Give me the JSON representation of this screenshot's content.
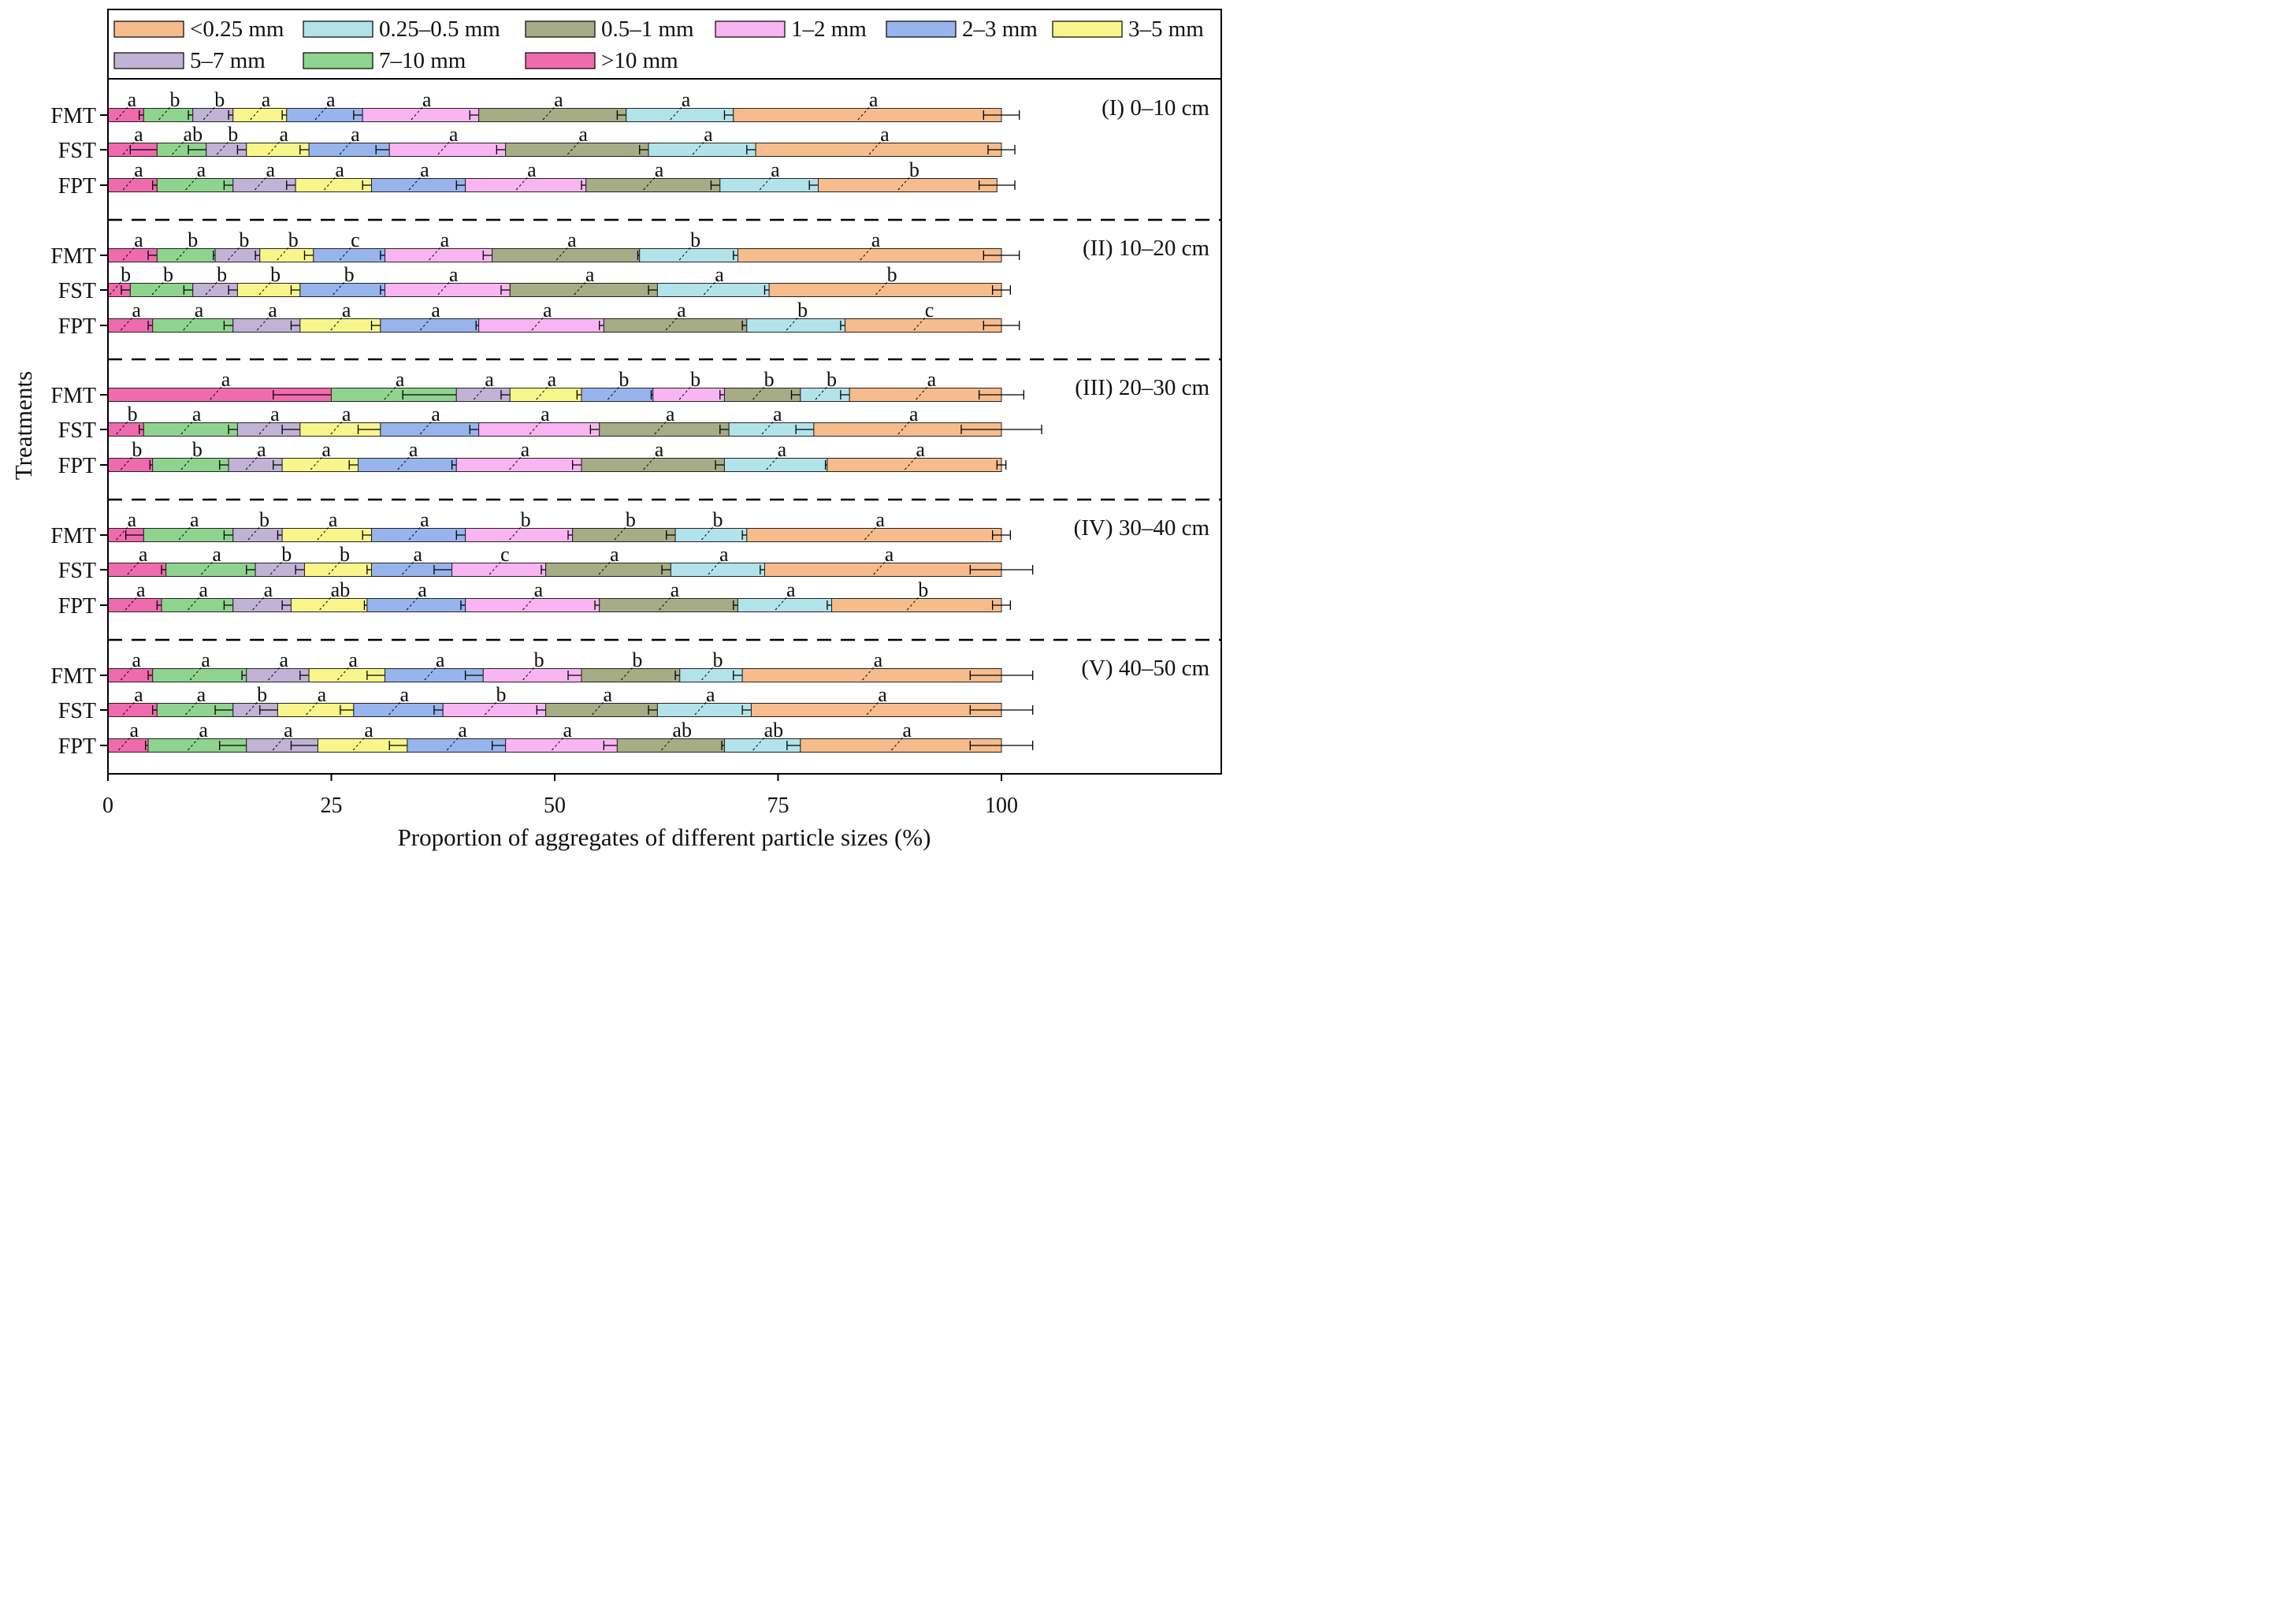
{
  "chart_data": {
    "type": "bar",
    "orientation": "horizontal",
    "stacked": true,
    "xlabel": "Proportion of aggregates of different particle sizes (%)",
    "ylabel": "Treatments",
    "xlim": [
      0,
      125
    ],
    "xticks": [
      0,
      25,
      50,
      75,
      100
    ],
    "legend_position": "top",
    "grid": false,
    "classes": [
      ">10 mm",
      "7–10 mm",
      "5–7 mm",
      "3–5 mm",
      "2–3 mm",
      "1–2 mm",
      "0.5–1 mm",
      "0.25–0.5 mm",
      "<0.25 mm"
    ],
    "legend_order": [
      "<0.25 mm",
      "0.25–0.5 mm",
      "0.5–1 mm",
      "1–2 mm",
      "2–3 mm",
      "3–5 mm",
      "5–7 mm",
      "7–10 mm",
      ">10 mm"
    ],
    "colors": {
      ">10 mm": "#F06AAE",
      "7–10 mm": "#8FD48E",
      "5–7 mm": "#C0B3D6",
      "3–5 mm": "#F8F68A",
      "2–3 mm": "#98B4EC",
      "1–2 mm": "#F8B5F2",
      "0.5–1 mm": "#A6AC85",
      "0.25–0.5 mm": "#B3E3EA",
      "<0.25 mm": "#F6BC8C"
    },
    "panels": [
      {
        "label": "(I) 0–10 cm",
        "rows": [
          {
            "treatment": "FMT",
            "values": [
              4.0,
              5.5,
              4.5,
              6.0,
              8.5,
              13.0,
              16.5,
              12.0,
              30.0
            ],
            "errors": [
              0.5,
              0.5,
              0.5,
              0.5,
              1.0,
              1.0,
              1.0,
              1.0,
              2.0
            ],
            "letters": [
              "a",
              "b",
              "b",
              "a",
              "a",
              "a",
              "a",
              "a",
              "a"
            ]
          },
          {
            "treatment": "FST",
            "values": [
              5.5,
              5.5,
              4.5,
              7.0,
              9.0,
              13.0,
              16.0,
              12.0,
              27.5
            ],
            "errors": [
              3.0,
              2.0,
              1.0,
              1.0,
              1.5,
              1.0,
              1.0,
              1.0,
              1.5
            ],
            "letters": [
              "a",
              "ab",
              "b",
              "a",
              "a",
              "a",
              "a",
              "a",
              "a"
            ]
          },
          {
            "treatment": "FPT",
            "values": [
              5.5,
              8.5,
              7.0,
              8.5,
              10.5,
              13.5,
              15.0,
              11.0,
              20.0
            ],
            "errors": [
              0.5,
              1.0,
              1.0,
              1.0,
              1.0,
              0.5,
              1.0,
              1.0,
              2.0
            ],
            "letters": [
              "a",
              "a",
              "a",
              "a",
              "a",
              "a",
              "a",
              "a",
              "b"
            ]
          }
        ]
      },
      {
        "label": "(II) 10–20 cm",
        "rows": [
          {
            "treatment": "FMT",
            "values": [
              5.5,
              6.5,
              5.0,
              6.0,
              8.0,
              12.0,
              16.5,
              11.0,
              29.5
            ],
            "errors": [
              1.0,
              0.2,
              0.5,
              1.0,
              0.5,
              1.0,
              0.2,
              0.5,
              2.0
            ],
            "letters": [
              "a",
              "b",
              "b",
              "b",
              "c",
              "a",
              "a",
              "b",
              "a"
            ]
          },
          {
            "treatment": "FST",
            "values": [
              2.5,
              7.0,
              5.0,
              7.0,
              9.5,
              14.0,
              16.5,
              12.5,
              26.0
            ],
            "errors": [
              1.0,
              1.0,
              1.0,
              1.0,
              0.5,
              1.0,
              1.0,
              0.5,
              1.0
            ],
            "letters": [
              "b",
              "b",
              "b",
              "b",
              "b",
              "a",
              "a",
              "a",
              "b"
            ]
          },
          {
            "treatment": "FPT",
            "values": [
              5.0,
              9.0,
              7.5,
              9.0,
              11.0,
              14.0,
              16.0,
              11.0,
              17.5
            ],
            "errors": [
              0.5,
              1.0,
              1.0,
              1.0,
              0.3,
              0.5,
              0.5,
              0.5,
              2.0
            ],
            "letters": [
              "a",
              "a",
              "a",
              "a",
              "a",
              "a",
              "a",
              "b",
              "c"
            ]
          }
        ]
      },
      {
        "label": "(III) 20–30 cm",
        "rows": [
          {
            "treatment": "FMT",
            "values": [
              25.0,
              14.0,
              6.0,
              8.0,
              8.0,
              8.0,
              8.5,
              5.5,
              17.0
            ],
            "errors": [
              6.5,
              6.0,
              1.0,
              0.5,
              0.2,
              0.5,
              1.0,
              1.0,
              2.5
            ],
            "letters": [
              "a",
              "a",
              "a",
              "a",
              "b",
              "b",
              "b",
              "b",
              "a"
            ]
          },
          {
            "treatment": "FST",
            "values": [
              4.0,
              10.5,
              7.0,
              9.0,
              11.0,
              13.5,
              14.5,
              9.5,
              21.0
            ],
            "errors": [
              0.5,
              1.0,
              2.0,
              2.5,
              1.0,
              1.0,
              1.0,
              2.0,
              4.5
            ],
            "letters": [
              "b",
              "a",
              "a",
              "a",
              "a",
              "a",
              "a",
              "a",
              "a"
            ]
          },
          {
            "treatment": "FPT",
            "values": [
              5.0,
              8.5,
              6.0,
              8.5,
              11.0,
              14.0,
              16.0,
              11.5,
              19.5
            ],
            "errors": [
              0.3,
              1.0,
              1.0,
              1.0,
              0.5,
              1.0,
              1.0,
              0.2,
              0.5
            ],
            "letters": [
              "b",
              "b",
              "a",
              "a",
              "a",
              "a",
              "a",
              "a",
              "a"
            ]
          }
        ]
      },
      {
        "label": "(IV) 30–40 cm",
        "rows": [
          {
            "treatment": "FMT",
            "values": [
              4.0,
              10.0,
              5.5,
              10.0,
              10.5,
              12.0,
              11.5,
              8.0,
              28.5
            ],
            "errors": [
              2.0,
              1.0,
              0.5,
              1.0,
              1.0,
              0.5,
              1.0,
              0.5,
              1.0
            ],
            "letters": [
              "a",
              "a",
              "b",
              "a",
              "a",
              "b",
              "b",
              "b",
              "a"
            ]
          },
          {
            "treatment": "FST",
            "values": [
              6.5,
              10.0,
              5.5,
              7.5,
              9.0,
              10.5,
              14.0,
              10.5,
              26.5
            ],
            "errors": [
              0.5,
              1.0,
              1.0,
              0.5,
              2.0,
              0.5,
              1.0,
              0.5,
              3.5
            ],
            "letters": [
              "a",
              "a",
              "b",
              "b",
              "a",
              "c",
              "a",
              "a",
              "a"
            ]
          },
          {
            "treatment": "FPT",
            "values": [
              6.0,
              8.0,
              6.5,
              8.5,
              11.0,
              15.0,
              15.5,
              10.5,
              19.0
            ],
            "errors": [
              0.5,
              1.0,
              1.0,
              0.3,
              0.5,
              0.5,
              0.5,
              0.5,
              1.0
            ],
            "letters": [
              "a",
              "a",
              "a",
              "ab",
              "a",
              "a",
              "a",
              "a",
              "b"
            ]
          }
        ]
      },
      {
        "label": "(V) 40–50 cm",
        "rows": [
          {
            "treatment": "FMT",
            "values": [
              5.0,
              10.5,
              7.0,
              8.5,
              11.0,
              11.0,
              11.0,
              7.0,
              29.0
            ],
            "errors": [
              0.5,
              0.5,
              1.0,
              2.0,
              2.0,
              1.5,
              0.5,
              1.0,
              3.5
            ],
            "letters": [
              "a",
              "a",
              "a",
              "a",
              "a",
              "b",
              "b",
              "b",
              "a"
            ]
          },
          {
            "treatment": "FST",
            "values": [
              5.5,
              8.5,
              5.0,
              8.5,
              10.0,
              11.5,
              12.5,
              10.5,
              28.0
            ],
            "errors": [
              0.5,
              2.0,
              2.0,
              1.5,
              1.0,
              1.0,
              1.0,
              1.0,
              3.5
            ],
            "letters": [
              "a",
              "a",
              "b",
              "a",
              "a",
              "b",
              "a",
              "a",
              "a"
            ]
          },
          {
            "treatment": "FPT",
            "values": [
              4.5,
              11.0,
              8.0,
              10.0,
              11.0,
              12.5,
              12.0,
              8.5,
              22.5
            ],
            "errors": [
              0.3,
              3.0,
              3.0,
              2.0,
              1.5,
              1.5,
              0.3,
              1.5,
              3.5
            ],
            "letters": [
              "a",
              "a",
              "a",
              "a",
              "a",
              "a",
              "ab",
              "ab",
              "a"
            ]
          }
        ]
      }
    ]
  }
}
